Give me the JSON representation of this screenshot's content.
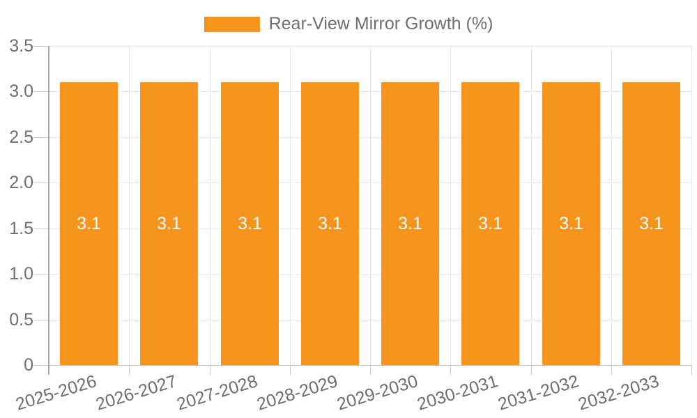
{
  "chart_data": {
    "type": "bar",
    "title": "",
    "xlabel": "",
    "ylabel": "",
    "categories": [
      "2025-2026",
      "2026-2027",
      "2027-2028",
      "2028-2029",
      "2029-2030",
      "2030-2031",
      "2031-2032",
      "2032-2033"
    ],
    "series": [
      {
        "name": "Rear-View Mirror Growth (%)",
        "values": [
          3.1,
          3.1,
          3.1,
          3.1,
          3.1,
          3.1,
          3.1,
          3.1
        ]
      }
    ],
    "value_labels": [
      "3.1",
      "3.1",
      "3.1",
      "3.1",
      "3.1",
      "3.1",
      "3.1",
      "3.1"
    ],
    "ylim": [
      0,
      3.5
    ],
    "yticks": [
      0,
      0.5,
      1,
      1.5,
      2,
      2.5,
      3,
      3.5
    ],
    "ytick_labels": [
      "0",
      "0.5",
      "1.0",
      "1.5",
      "2.0",
      "2.5",
      "3.0",
      "3.5"
    ],
    "grid": true,
    "legend_position": "top-center",
    "colors": {
      "bar": "#f7941e",
      "bar_label": "#ffffff",
      "axis_text": "#6e6e6e",
      "grid_line": "#e6e6e6",
      "axis_line": "#a9a9a9",
      "tick_line": "#c9c9c9",
      "baseline": "#c4c4c4"
    }
  }
}
